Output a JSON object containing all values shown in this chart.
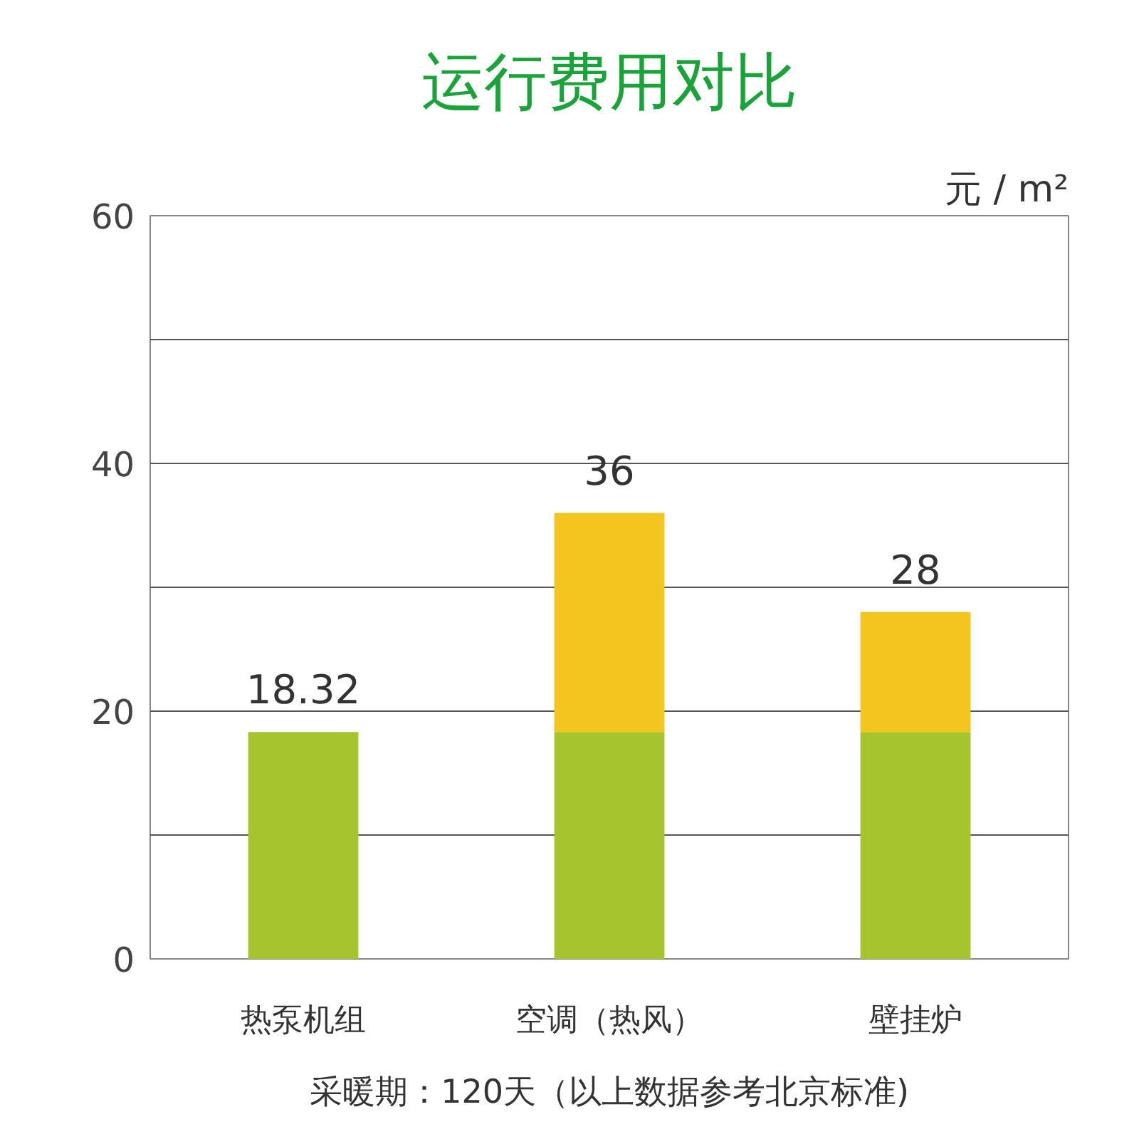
{
  "chart_data": {
    "type": "bar",
    "title": "运行费用对比",
    "ylabel": "元 / m²",
    "categories": [
      "热泵机组",
      "空调（热风）",
      "壁挂炉"
    ],
    "stacked": true,
    "series": [
      {
        "color": "#a5c42d",
        "values": [
          18.32,
          18.32,
          18.32
        ]
      },
      {
        "color": "#f4c51f",
        "values": [
          null,
          17.68,
          9.68
        ]
      }
    ],
    "totals": [
      "18.32",
      "36",
      "28"
    ],
    "ylim": [
      0,
      60
    ],
    "yticks": [
      0,
      {
        "value": 10,
        "label": null
      },
      20,
      {
        "value": 30,
        "label": null
      },
      40,
      {
        "value": 50,
        "label": null
      },
      60
    ],
    "grid": "y",
    "annotations": [
      "采暖期：120天（以上数据参考北京标准)"
    ]
  }
}
